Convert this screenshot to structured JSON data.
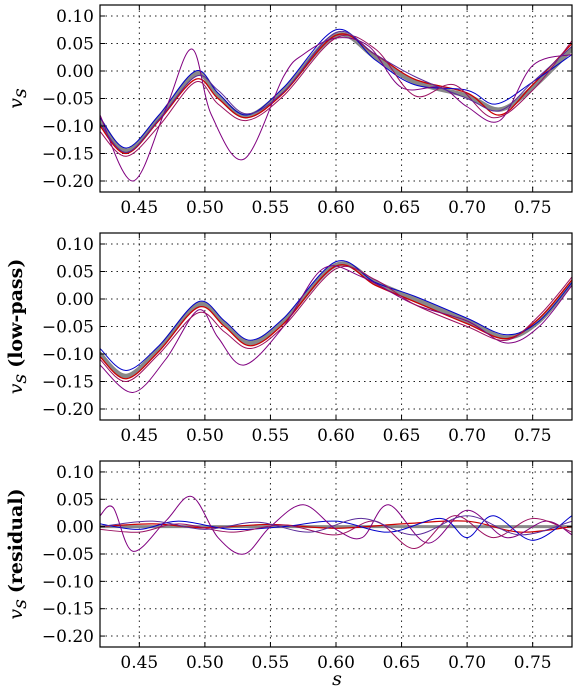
{
  "chart_data": [
    {
      "type": "line",
      "panel": "top",
      "ylabel_main": "v",
      "ylabel_sub": "s",
      "ylabel_suffix": "",
      "xlabel_main": "",
      "xlim": [
        0.42,
        0.78
      ],
      "ylim": [
        -0.22,
        0.12
      ],
      "xticks": [
        0.45,
        0.5,
        0.55,
        0.6,
        0.65,
        0.7,
        0.75
      ],
      "xtick_labels": [
        "0.45",
        "0.50",
        "0.55",
        "0.60",
        "0.65",
        "0.70",
        "0.75"
      ],
      "yticks": [
        -0.2,
        -0.15,
        -0.1,
        -0.05,
        0.0,
        0.05,
        0.1
      ],
      "ytick_labels": [
        "−0.20",
        "−0.15",
        "−0.10",
        "−0.05",
        "0.00",
        "0.05",
        "0.10"
      ],
      "grid": true,
      "series": [
        {
          "color": "#888888",
          "width": 4.5,
          "x": [
            0.42,
            0.44,
            0.465,
            0.493,
            0.51,
            0.532,
            0.56,
            0.6,
            0.63,
            0.66,
            0.7,
            0.725,
            0.75,
            0.78
          ],
          "y": [
            -0.09,
            -0.145,
            -0.085,
            -0.005,
            -0.045,
            -0.082,
            -0.035,
            0.065,
            0.025,
            -0.02,
            -0.045,
            -0.07,
            -0.03,
            0.04
          ]
        },
        {
          "color": "#cc0000",
          "width": 1.3,
          "x": [
            0.42,
            0.44,
            0.465,
            0.493,
            0.51,
            0.532,
            0.56,
            0.6,
            0.63,
            0.66,
            0.7,
            0.725,
            0.75,
            0.78
          ],
          "y": [
            -0.1,
            -0.15,
            -0.09,
            -0.015,
            -0.05,
            -0.085,
            -0.04,
            0.065,
            0.03,
            -0.015,
            -0.04,
            -0.08,
            -0.025,
            0.05
          ]
        },
        {
          "color": "#0000cc",
          "width": 1.0,
          "x": [
            0.42,
            0.44,
            0.465,
            0.493,
            0.51,
            0.532,
            0.56,
            0.6,
            0.63,
            0.66,
            0.7,
            0.722,
            0.75,
            0.78
          ],
          "y": [
            -0.085,
            -0.14,
            -0.08,
            0.0,
            -0.04,
            -0.08,
            -0.03,
            0.075,
            0.02,
            -0.025,
            -0.035,
            -0.06,
            -0.02,
            0.03
          ]
        },
        {
          "color": "#800080",
          "width": 1.0,
          "x": [
            0.42,
            0.445,
            0.47,
            0.49,
            0.505,
            0.53,
            0.56,
            0.575,
            0.6,
            0.625,
            0.65,
            0.68,
            0.7,
            0.725,
            0.75,
            0.78
          ],
          "y": [
            -0.08,
            -0.2,
            -0.07,
            0.04,
            -0.08,
            -0.16,
            -0.01,
            0.03,
            0.06,
            0.045,
            -0.03,
            -0.03,
            -0.065,
            -0.09,
            0.01,
            0.03
          ]
        },
        {
          "color": "#9b1060",
          "width": 1.0,
          "x": [
            0.42,
            0.44,
            0.465,
            0.493,
            0.51,
            0.532,
            0.56,
            0.6,
            0.63,
            0.66,
            0.69,
            0.72,
            0.75,
            0.78
          ],
          "y": [
            -0.11,
            -0.155,
            -0.1,
            -0.02,
            -0.06,
            -0.09,
            -0.045,
            0.06,
            0.04,
            -0.045,
            -0.025,
            -0.085,
            -0.035,
            0.055
          ]
        },
        {
          "color": "#5a2a9a",
          "width": 1.0,
          "x": [
            0.42,
            0.44,
            0.465,
            0.493,
            0.51,
            0.532,
            0.56,
            0.6,
            0.63,
            0.66,
            0.7,
            0.725,
            0.75,
            0.78
          ],
          "y": [
            -0.095,
            -0.148,
            -0.088,
            -0.01,
            -0.035,
            -0.078,
            -0.038,
            0.07,
            0.03,
            -0.01,
            -0.05,
            -0.072,
            -0.02,
            0.045
          ]
        }
      ]
    },
    {
      "type": "line",
      "panel": "middle",
      "ylabel_main": "v",
      "ylabel_sub": "s",
      "ylabel_suffix": "(low-pass)",
      "xlabel_main": "",
      "xlim": [
        0.42,
        0.78
      ],
      "ylim": [
        -0.22,
        0.12
      ],
      "xticks": [
        0.45,
        0.5,
        0.55,
        0.6,
        0.65,
        0.7,
        0.75
      ],
      "xtick_labels": [
        "0.45",
        "0.50",
        "0.55",
        "0.60",
        "0.65",
        "0.70",
        "0.75"
      ],
      "yticks": [
        -0.2,
        -0.15,
        -0.1,
        -0.05,
        0.0,
        0.05,
        0.1
      ],
      "ytick_labels": [
        "−0.20",
        "−0.15",
        "−0.10",
        "−0.05",
        "0.00",
        "0.05",
        "0.10"
      ],
      "grid": true,
      "series": [
        {
          "color": "#888888",
          "width": 4.5,
          "x": [
            0.42,
            0.44,
            0.465,
            0.495,
            0.515,
            0.535,
            0.56,
            0.6,
            0.63,
            0.66,
            0.7,
            0.73,
            0.755,
            0.78
          ],
          "y": [
            -0.1,
            -0.14,
            -0.09,
            -0.01,
            -0.045,
            -0.08,
            -0.04,
            0.062,
            0.03,
            0.0,
            -0.04,
            -0.07,
            -0.04,
            0.03
          ]
        },
        {
          "color": "#cc0000",
          "width": 1.3,
          "x": [
            0.42,
            0.44,
            0.465,
            0.495,
            0.515,
            0.535,
            0.56,
            0.6,
            0.63,
            0.66,
            0.7,
            0.73,
            0.755,
            0.78
          ],
          "y": [
            -0.105,
            -0.145,
            -0.095,
            -0.015,
            -0.05,
            -0.085,
            -0.045,
            0.06,
            0.025,
            -0.005,
            -0.045,
            -0.072,
            -0.035,
            0.035
          ]
        },
        {
          "color": "#0000cc",
          "width": 1.0,
          "x": [
            0.42,
            0.44,
            0.465,
            0.495,
            0.515,
            0.535,
            0.56,
            0.6,
            0.63,
            0.66,
            0.7,
            0.73,
            0.755,
            0.78
          ],
          "y": [
            -0.09,
            -0.13,
            -0.085,
            -0.005,
            -0.04,
            -0.075,
            -0.035,
            0.068,
            0.03,
            0.005,
            -0.035,
            -0.065,
            -0.04,
            0.03
          ]
        },
        {
          "color": "#800080",
          "width": 1.0,
          "x": [
            0.42,
            0.445,
            0.47,
            0.495,
            0.51,
            0.53,
            0.56,
            0.59,
            0.62,
            0.66,
            0.7,
            0.73,
            0.755,
            0.78
          ],
          "y": [
            -0.12,
            -0.17,
            -0.11,
            -0.02,
            -0.07,
            -0.12,
            -0.05,
            0.055,
            0.04,
            -0.01,
            -0.04,
            -0.08,
            -0.05,
            0.025
          ]
        },
        {
          "color": "#9b1060",
          "width": 1.0,
          "x": [
            0.42,
            0.44,
            0.465,
            0.495,
            0.515,
            0.535,
            0.56,
            0.6,
            0.63,
            0.66,
            0.7,
            0.73,
            0.755,
            0.78
          ],
          "y": [
            -0.11,
            -0.15,
            -0.1,
            -0.025,
            -0.06,
            -0.09,
            -0.05,
            0.055,
            0.035,
            -0.01,
            -0.05,
            -0.075,
            -0.03,
            0.04
          ]
        }
      ]
    },
    {
      "type": "line",
      "panel": "bottom",
      "ylabel_main": "v",
      "ylabel_sub": "s",
      "ylabel_suffix": "(residual)",
      "xlabel_main": "s",
      "xlim": [
        0.42,
        0.78
      ],
      "ylim": [
        -0.22,
        0.12
      ],
      "xticks": [
        0.45,
        0.5,
        0.55,
        0.6,
        0.65,
        0.7,
        0.75
      ],
      "xtick_labels": [
        "0.45",
        "0.50",
        "0.55",
        "0.60",
        "0.65",
        "0.70",
        "0.75"
      ],
      "yticks": [
        -0.2,
        -0.15,
        -0.1,
        -0.05,
        0.0,
        0.05,
        0.1
      ],
      "ytick_labels": [
        "−0.20",
        "−0.15",
        "−0.10",
        "−0.05",
        "0.00",
        "0.05",
        "0.10"
      ],
      "grid": true,
      "series": [
        {
          "color": "#888888",
          "width": 3.0,
          "x": [
            0.42,
            0.5,
            0.6,
            0.7,
            0.78
          ],
          "y": [
            0.0,
            0.0,
            0.0,
            0.0,
            0.0
          ]
        },
        {
          "color": "#cc0000",
          "width": 1.2,
          "x": [
            0.42,
            0.46,
            0.5,
            0.55,
            0.6,
            0.65,
            0.7,
            0.74,
            0.78
          ],
          "y": [
            0.0,
            0.005,
            -0.002,
            0.004,
            -0.003,
            0.005,
            0.01,
            -0.01,
            0.0
          ]
        },
        {
          "color": "#0000cc",
          "width": 1.0,
          "x": [
            0.42,
            0.45,
            0.48,
            0.52,
            0.56,
            0.6,
            0.64,
            0.68,
            0.7,
            0.72,
            0.75,
            0.78
          ],
          "y": [
            0.005,
            -0.005,
            0.01,
            -0.005,
            0.0,
            0.01,
            -0.01,
            0.015,
            -0.02,
            0.02,
            -0.025,
            0.02
          ]
        },
        {
          "color": "#800080",
          "width": 1.0,
          "x": [
            0.42,
            0.43,
            0.445,
            0.47,
            0.49,
            0.51,
            0.53,
            0.55,
            0.575,
            0.6,
            0.62,
            0.64,
            0.67,
            0.7,
            0.73,
            0.76,
            0.78
          ],
          "y": [
            0.02,
            0.035,
            -0.045,
            0.01,
            0.055,
            -0.02,
            -0.05,
            0.0,
            0.04,
            -0.005,
            -0.02,
            0.04,
            -0.03,
            0.03,
            -0.02,
            0.01,
            -0.015
          ]
        },
        {
          "color": "#9b1060",
          "width": 1.0,
          "x": [
            0.42,
            0.45,
            0.48,
            0.52,
            0.56,
            0.6,
            0.63,
            0.66,
            0.69,
            0.72,
            0.75,
            0.78
          ],
          "y": [
            -0.005,
            -0.01,
            0.005,
            -0.01,
            0.003,
            -0.015,
            0.01,
            -0.04,
            0.02,
            -0.02,
            0.015,
            -0.01
          ]
        },
        {
          "color": "#5a2a9a",
          "width": 1.0,
          "x": [
            0.42,
            0.46,
            0.5,
            0.54,
            0.58,
            0.62,
            0.66,
            0.7,
            0.74,
            0.78
          ],
          "y": [
            0.0,
            0.01,
            -0.005,
            0.008,
            -0.01,
            0.015,
            -0.015,
            0.02,
            -0.015,
            0.01
          ]
        }
      ]
    }
  ]
}
